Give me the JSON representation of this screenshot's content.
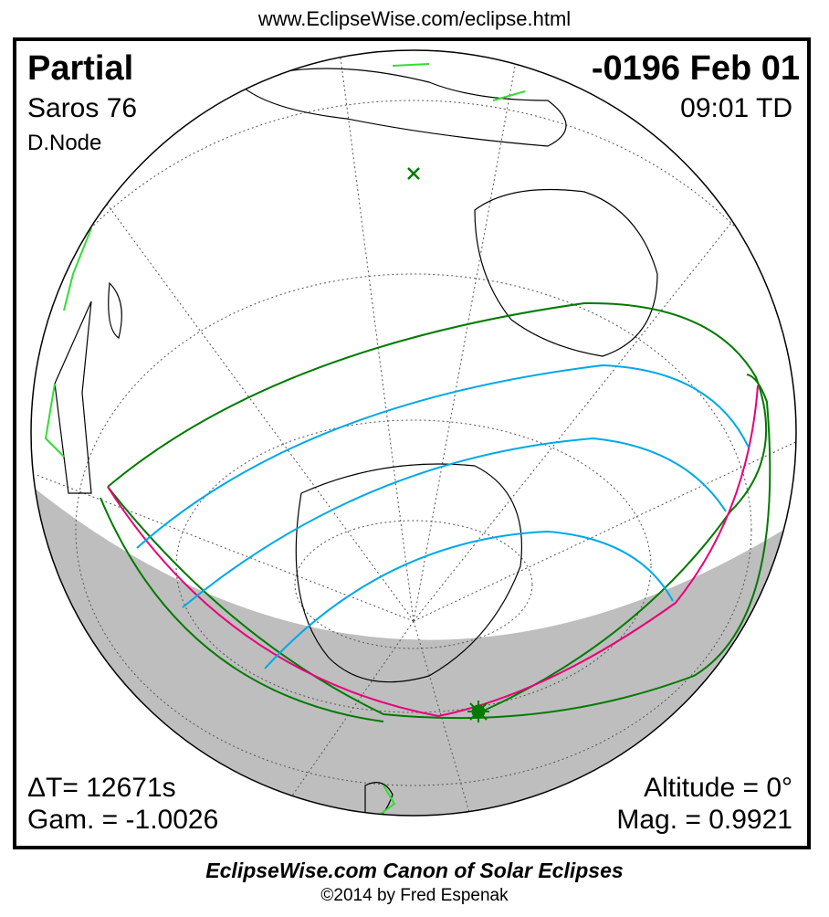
{
  "url": "www.EclipseWise.com/eclipse.html",
  "eclipse_type": "Partial",
  "saros": "Saros  76",
  "node": "D.Node",
  "date": "-0196 Feb 01",
  "time": "09:01 TD",
  "delta_t": "ΔT=  12671s",
  "gamma": "Gam. = -1.0026",
  "altitude": "Altitude =  0°",
  "magnitude": "Mag. = 0.9921",
  "footer_title": "EclipseWise.com Canon of Solar Eclipses",
  "footer_copyright": "©2014 by Fred Espenak",
  "colors": {
    "night": "#bebebe",
    "limit_curves": "#007a00",
    "mid_curves": "#00a8e8",
    "max_curve": "#e8007a",
    "coast_highlight": "#33dd33"
  }
}
